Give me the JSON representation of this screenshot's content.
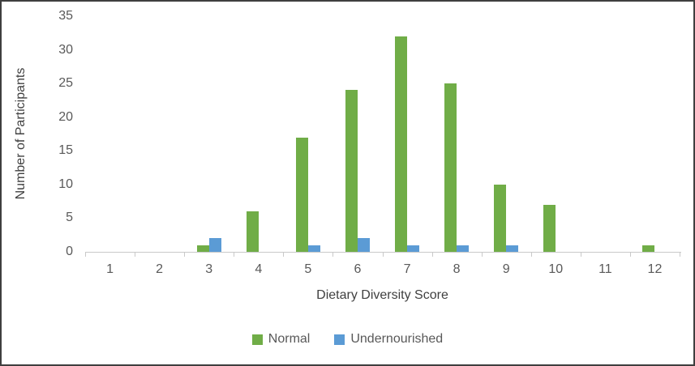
{
  "chart_data": {
    "type": "bar",
    "title": "",
    "xlabel": "Dietary Diversity Score",
    "ylabel": "Number of Participants",
    "categories": [
      "1",
      "2",
      "3",
      "4",
      "5",
      "6",
      "7",
      "8",
      "9",
      "10",
      "11",
      "12"
    ],
    "series": [
      {
        "name": "Normal",
        "color": "#70AD47",
        "values": [
          0,
          0,
          1,
          6,
          17,
          24,
          32,
          25,
          10,
          7,
          0,
          1
        ]
      },
      {
        "name": "Undernourished",
        "color": "#5B9BD5",
        "values": [
          0,
          0,
          2,
          0,
          1,
          2,
          1,
          1,
          1,
          0,
          0,
          0
        ]
      }
    ],
    "ylim": [
      0,
      35
    ],
    "ytick_step": 5,
    "ytick_labels": [
      "0",
      "5",
      "10",
      "15",
      "20",
      "25",
      "30",
      "35"
    ],
    "grid": false,
    "legend_position": "bottom"
  },
  "colors": {
    "normal_green": "#70AD47",
    "undernourished_blue": "#5B9BD5",
    "tick_text": "#595959",
    "axis_line": "#C9C9C9",
    "frame_border": "#3F3F3F",
    "background": "#FFFFFF"
  }
}
